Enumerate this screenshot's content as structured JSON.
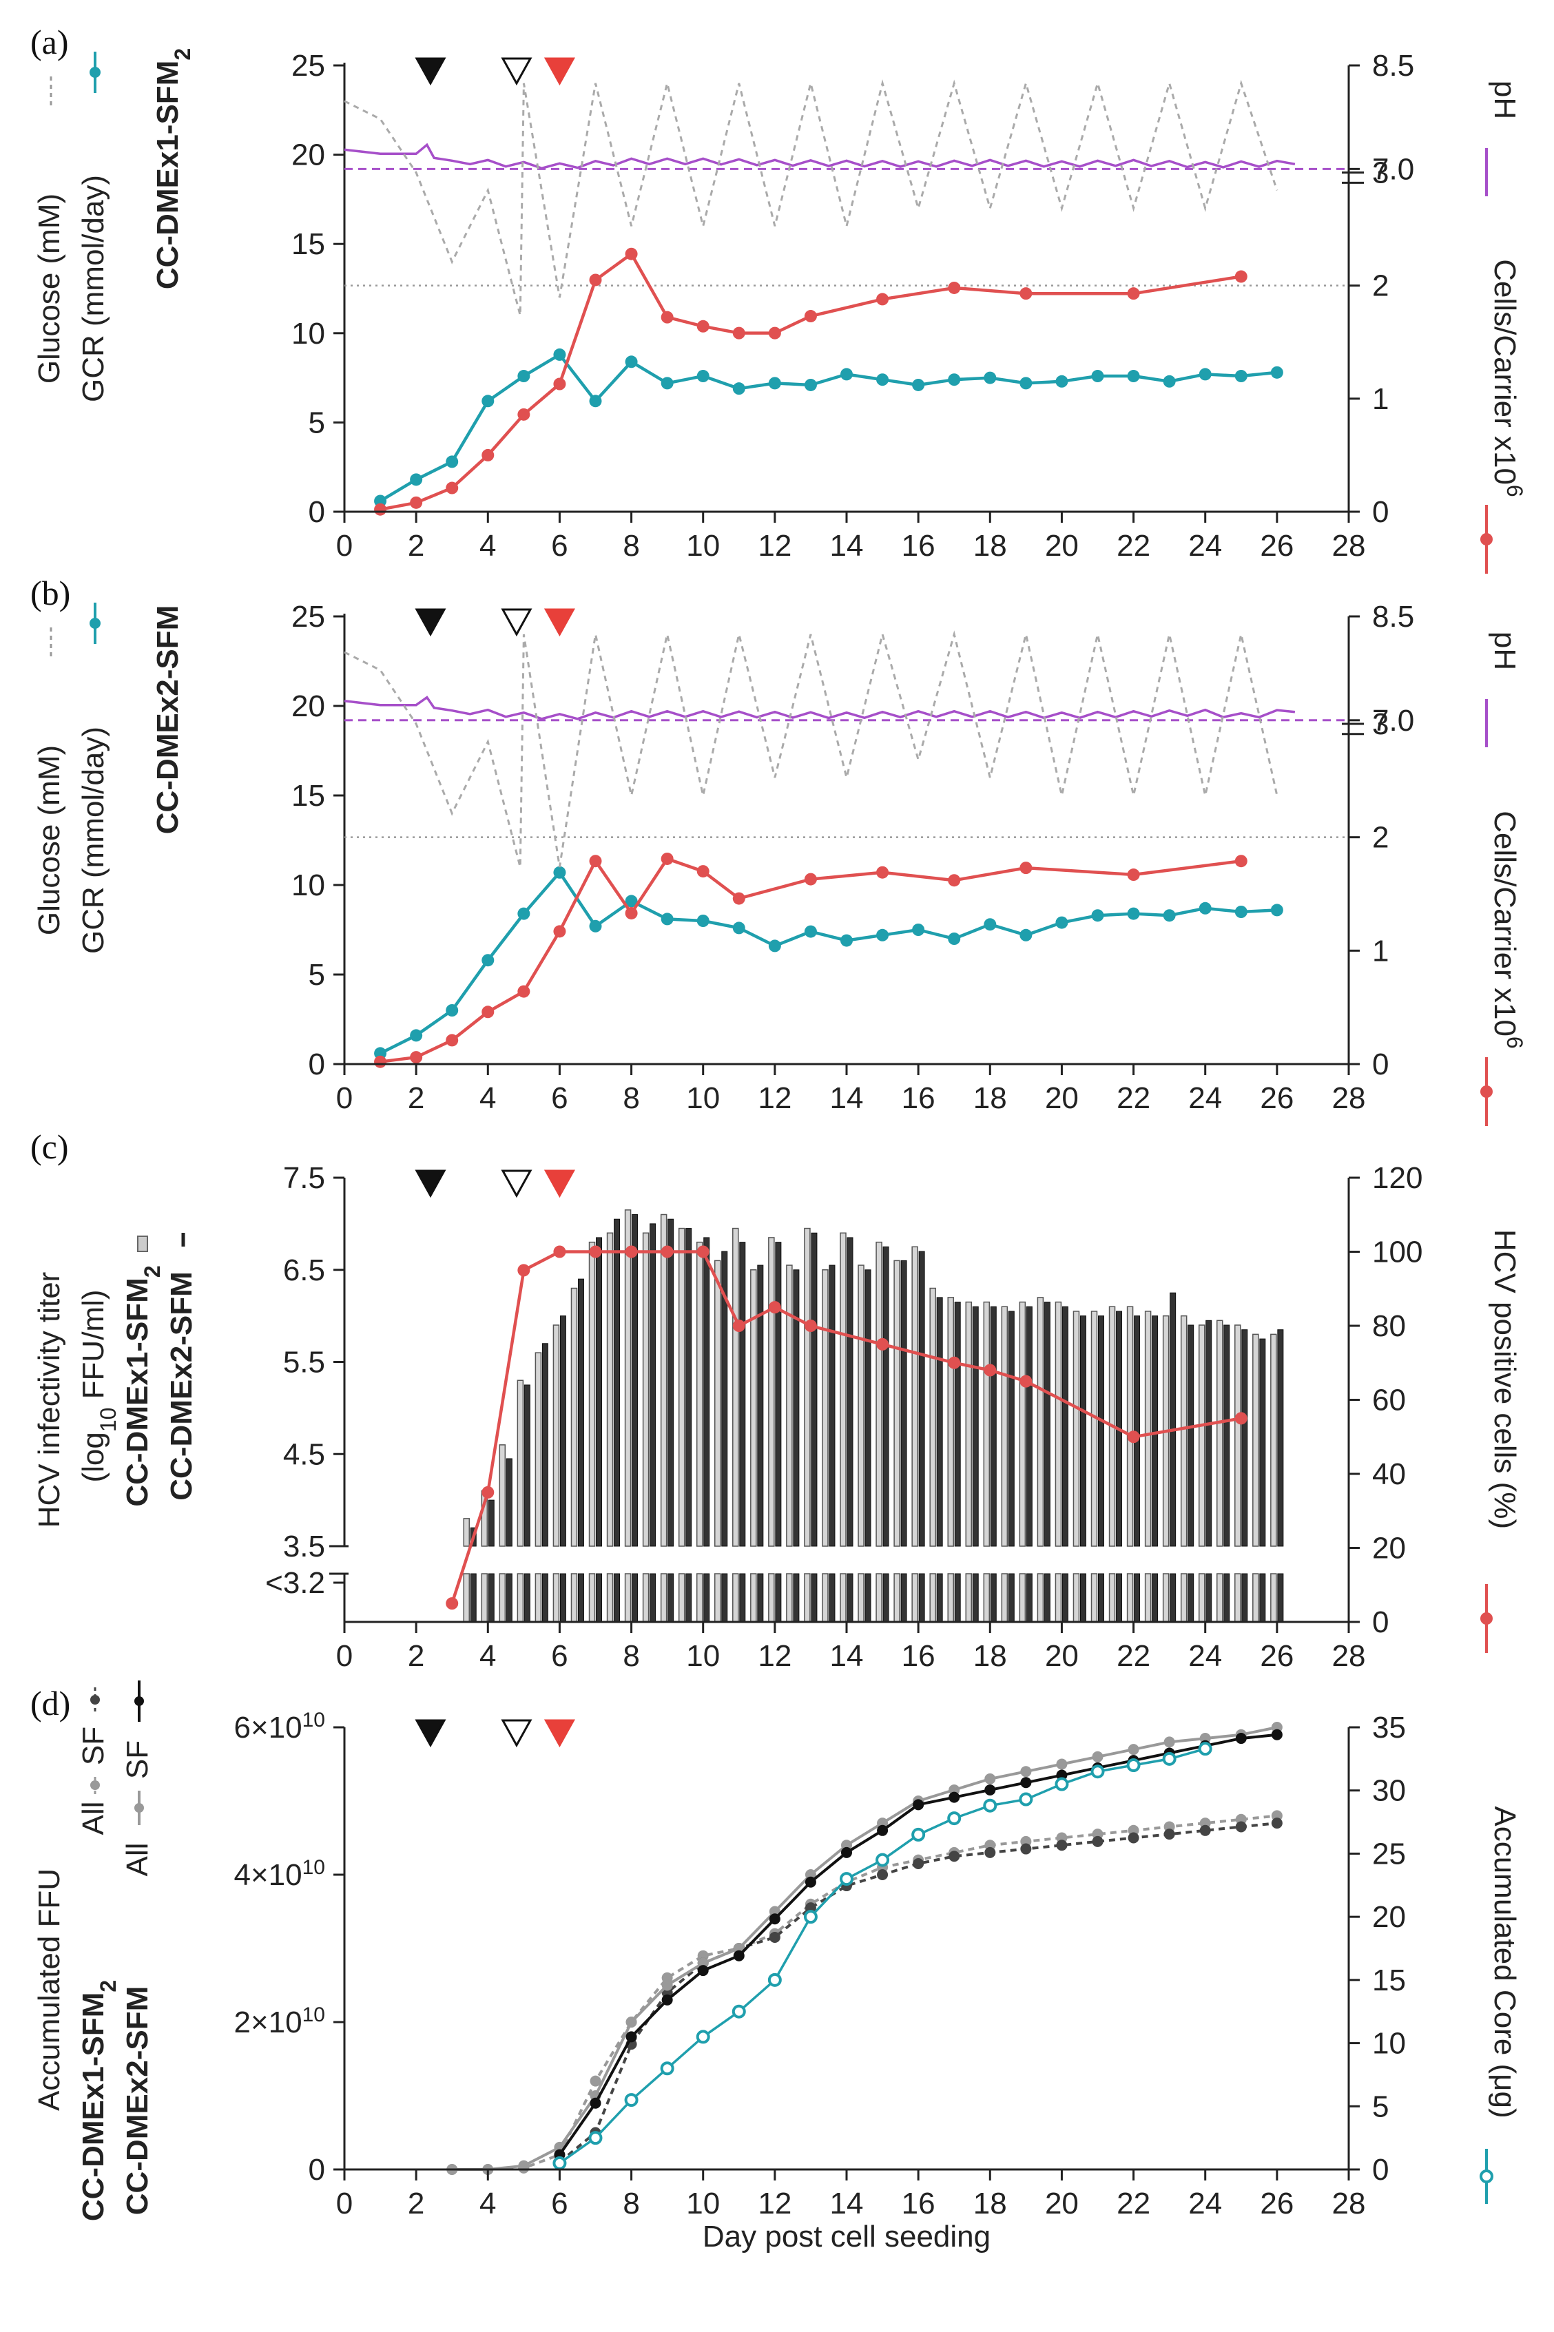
{
  "figure": {
    "xlabel": "Day post cell seeding",
    "x_ticks": [
      0,
      2,
      4,
      6,
      8,
      10,
      12,
      14,
      16,
      18,
      20,
      22,
      24,
      26,
      28
    ],
    "markers": [
      {
        "day": 2.4,
        "style": "filled-black"
      },
      {
        "day": 4.8,
        "style": "open-black"
      },
      {
        "day": 6.0,
        "style": "filled-red"
      }
    ],
    "colors": {
      "teal": "#1f9fad",
      "red": "#e05050",
      "purple": "#a64fc9",
      "grey": "#aaaaaa",
      "black": "#111111"
    }
  },
  "chart_data": [
    {
      "panel": "(a)",
      "type": "line",
      "culture": "CC-DMEx1-SFM",
      "culture_sub": "2",
      "ylabel_left_1": "Glucose (mM)",
      "ylabel_left_2": "GCR (mmol/day)",
      "ylabel_right_top": "pH",
      "ylabel_right_bottom": "Cells/Carrier x10",
      "ylabel_right_bottom_sup": "6",
      "y_left_ticks": [
        0,
        5,
        10,
        15,
        20,
        25
      ],
      "ylim_left": [
        0,
        25
      ],
      "y_right_bottom_ticks": [
        0,
        1,
        2,
        3
      ],
      "ylim_right_bottom": [
        0,
        3
      ],
      "y_right_top_ticks": [
        "7.0",
        "8.5"
      ],
      "ylim_right_top": [
        7.0,
        8.5
      ],
      "ph_reference": 7.0,
      "cells_reference": 2.0,
      "series": [
        {
          "name": "GCR (mmol/day)",
          "color": "#1f9fad",
          "x": [
            1,
            2,
            3,
            4,
            5,
            6,
            7,
            8,
            9,
            10,
            11,
            12,
            13,
            14,
            15,
            16,
            17,
            18,
            19,
            20,
            21,
            22,
            23,
            24,
            25,
            26
          ],
          "y": [
            0.6,
            1.8,
            2.8,
            6.2,
            7.6,
            8.8,
            6.2,
            8.4,
            7.2,
            7.6,
            6.9,
            7.2,
            7.1,
            7.7,
            7.4,
            7.1,
            7.4,
            7.5,
            7.2,
            7.3,
            7.6,
            7.6,
            7.3,
            7.7,
            7.6,
            7.8
          ]
        },
        {
          "name": "Cells/Carrier x10^6",
          "color": "#e05050",
          "x": [
            1,
            2,
            3,
            4,
            5,
            6,
            7,
            8,
            9,
            10,
            11,
            12,
            13,
            15,
            17,
            19,
            22,
            25
          ],
          "y": [
            0.02,
            0.08,
            0.21,
            0.5,
            0.86,
            1.13,
            2.05,
            2.28,
            1.72,
            1.64,
            1.58,
            1.58,
            1.73,
            1.88,
            1.98,
            1.93,
            1.93,
            2.08
          ]
        },
        {
          "name": "pH",
          "color": "#a64fc9",
          "x": [
            0,
            1,
            2,
            2.3,
            2.5,
            3,
            4,
            5,
            6,
            8,
            10,
            12,
            14,
            16,
            18,
            20,
            22,
            24,
            26.5
          ],
          "y": [
            7.28,
            7.22,
            7.22,
            7.35,
            7.16,
            7.12,
            7.08,
            7.05,
            7.03,
            7.1,
            7.1,
            7.08,
            7.07,
            7.06,
            7.08,
            7.06,
            7.08,
            7.05,
            7.07
          ]
        },
        {
          "name": "Glucose (mM)",
          "color": "#aaaaaa",
          "dashed": true,
          "x": [
            0,
            1,
            2,
            3,
            4,
            4.9,
            5,
            6,
            7,
            8,
            9,
            10,
            11,
            12,
            13,
            14,
            15,
            16,
            17,
            18,
            19,
            20,
            21,
            22,
            23,
            24,
            25,
            26
          ],
          "y": [
            23,
            22,
            19,
            14,
            18,
            11,
            24,
            12,
            24,
            16,
            24,
            16,
            24,
            16,
            24,
            16,
            24,
            17,
            24,
            17,
            24,
            17,
            24,
            17,
            24,
            17,
            24,
            18
          ]
        }
      ]
    },
    {
      "panel": "(b)",
      "type": "line",
      "culture": "CC-DMEx2-SFM",
      "culture_sub": "",
      "ylabel_left_1": "Glucose (mM)",
      "ylabel_left_2": "GCR (mmol/day)",
      "ylabel_right_top": "pH",
      "ylabel_right_bottom": "Cells/Carrier x10",
      "ylabel_right_bottom_sup": "6",
      "y_left_ticks": [
        0,
        5,
        10,
        15,
        20,
        25
      ],
      "ylim_left": [
        0,
        25
      ],
      "y_right_bottom_ticks": [
        0,
        1,
        2,
        3
      ],
      "ylim_right_bottom": [
        0,
        3
      ],
      "y_right_top_ticks": [
        "7.0",
        "8.5"
      ],
      "ylim_right_top": [
        7.0,
        8.5
      ],
      "ph_reference": 7.0,
      "cells_reference": 2.0,
      "series": [
        {
          "name": "GCR (mmol/day)",
          "color": "#1f9fad",
          "x": [
            1,
            2,
            3,
            4,
            5,
            6,
            7,
            8,
            9,
            10,
            11,
            12,
            13,
            14,
            15,
            16,
            17,
            18,
            19,
            20,
            21,
            22,
            23,
            24,
            25,
            26
          ],
          "y": [
            0.6,
            1.6,
            3.0,
            5.8,
            8.4,
            10.7,
            7.7,
            9.1,
            8.1,
            8.0,
            7.6,
            6.6,
            7.4,
            6.9,
            7.2,
            7.5,
            7.0,
            7.8,
            7.2,
            7.9,
            8.3,
            8.4,
            8.3,
            8.7,
            8.5,
            8.6
          ]
        },
        {
          "name": "Cells/Carrier x10^6",
          "color": "#e05050",
          "x": [
            1,
            2,
            3,
            4,
            5,
            6,
            7,
            8,
            9,
            10,
            11,
            13,
            15,
            17,
            19,
            22,
            25
          ],
          "y": [
            0.02,
            0.06,
            0.21,
            0.46,
            0.64,
            1.17,
            1.79,
            1.33,
            1.81,
            1.7,
            1.46,
            1.63,
            1.69,
            1.62,
            1.73,
            1.67,
            1.79
          ]
        },
        {
          "name": "pH",
          "color": "#a64fc9",
          "x": [
            0,
            1,
            2,
            2.3,
            2.5,
            3,
            4,
            5,
            6,
            8,
            10,
            12,
            14,
            16,
            18,
            20,
            22,
            24,
            25,
            26.5
          ],
          "y": [
            7.28,
            7.22,
            7.22,
            7.33,
            7.18,
            7.14,
            7.1,
            7.06,
            7.04,
            7.08,
            7.08,
            7.07,
            7.06,
            7.08,
            7.08,
            7.06,
            7.08,
            7.1,
            7.05,
            7.12
          ]
        },
        {
          "name": "Glucose (mM)",
          "color": "#aaaaaa",
          "dashed": true,
          "x": [
            0,
            1,
            2,
            3,
            4,
            4.9,
            5,
            6,
            7,
            8,
            9,
            10,
            11,
            12,
            13,
            14,
            15,
            16,
            17,
            18,
            19,
            20,
            21,
            22,
            23,
            24,
            25,
            26
          ],
          "y": [
            23,
            22,
            19,
            14,
            18,
            11,
            24,
            11,
            24,
            15,
            24,
            15,
            24,
            16,
            24,
            16,
            24,
            17,
            24,
            16,
            24,
            15,
            24,
            15,
            24,
            15,
            24,
            15
          ]
        }
      ]
    },
    {
      "panel": "(c)",
      "type": "bar",
      "culture_1": "CC-DMEx1-SFM",
      "culture_1_sub": "2",
      "culture_2": "CC-DMEx2-SFM",
      "ylabel_left_1": "HCV infectivity titer",
      "ylabel_left_2_pre": "(log",
      "ylabel_left_2_sub": "10",
      "ylabel_left_2_post": " FFU/ml)",
      "ylabel_right": "HCV positive cells (%)",
      "y_left_ticks": [
        "<3.2",
        "3.5",
        "4.5",
        "5.5",
        "6.5",
        "7.5"
      ],
      "ylim_left": [
        3.5,
        7.5
      ],
      "y_right_ticks": [
        0,
        20,
        40,
        60,
        80,
        100,
        120
      ],
      "ylim_right": [
        0,
        120
      ],
      "bars": {
        "x1": [
          3.5,
          4,
          4.5,
          5,
          5.5,
          6,
          6.5,
          7,
          7.5,
          8,
          8.5,
          9,
          9.5,
          10,
          10.5,
          11,
          11.5,
          12,
          12.5,
          13,
          13.5,
          14,
          14.5,
          15,
          15.5,
          16,
          16.5,
          17,
          17.5,
          18,
          18.5,
          19,
          19.5,
          20,
          20.5,
          21,
          21.5,
          22,
          22.5,
          23,
          23.5,
          24,
          24.5,
          25,
          25.5,
          26
        ],
        "titer_sfm2": [
          3.8,
          4.1,
          4.6,
          5.3,
          5.6,
          5.9,
          6.3,
          6.8,
          6.9,
          7.15,
          6.9,
          7.1,
          6.95,
          6.8,
          6.6,
          6.95,
          6.5,
          6.85,
          6.55,
          6.95,
          6.5,
          6.9,
          6.55,
          6.8,
          6.6,
          6.75,
          6.3,
          6.2,
          6.15,
          6.15,
          6.1,
          6.15,
          6.2,
          6.15,
          6.05,
          6.05,
          6.1,
          6.1,
          6.05,
          6.0,
          6.0,
          5.9,
          5.95,
          5.9,
          5.8,
          5.8
        ],
        "titer_sfm": [
          3.7,
          4.0,
          4.45,
          5.25,
          5.7,
          6.0,
          6.4,
          6.85,
          7.05,
          7.1,
          7.0,
          7.05,
          6.95,
          6.85,
          6.7,
          6.8,
          6.55,
          6.8,
          6.5,
          6.9,
          6.55,
          6.85,
          6.5,
          6.75,
          6.6,
          6.7,
          6.2,
          6.15,
          6.1,
          6.1,
          6.05,
          6.1,
          6.15,
          6.1,
          6.0,
          6.0,
          6.05,
          6.0,
          6.0,
          6.25,
          5.9,
          5.95,
          5.9,
          5.85,
          5.75,
          5.85
        ]
      },
      "series": [
        {
          "name": "HCV positive cells (%)",
          "color": "#e05050",
          "x": [
            3,
            4,
            5,
            6,
            7,
            8,
            9,
            10,
            11,
            12,
            13,
            15,
            17,
            18,
            19,
            22,
            25
          ],
          "y": [
            5,
            35,
            95,
            100,
            100,
            100,
            100,
            100,
            80,
            85,
            80,
            75,
            70,
            68,
            65,
            50,
            55
          ]
        }
      ]
    },
    {
      "panel": "(d)",
      "type": "line",
      "culture_1": "CC-DMEx1-SFM",
      "culture_1_sub": "2",
      "culture_2": "CC-DMEx2-SFM",
      "ylabel_left": "Accumulated FFU",
      "legend_all": "All",
      "legend_sf": "SF",
      "ylabel_right": "Accumulated Core (μg)",
      "y_left_ticks": [
        {
          "value": 0,
          "label": "0"
        },
        {
          "value": 20000000000,
          "label": "2×10",
          "exp": "10"
        },
        {
          "value": 40000000000,
          "label": "4×10",
          "exp": "10"
        },
        {
          "value": 60000000000,
          "label": "6×10",
          "exp": "10"
        }
      ],
      "ylim_left": [
        0,
        60000000000
      ],
      "y_right_ticks": [
        0,
        5,
        10,
        15,
        20,
        25,
        30,
        35
      ],
      "ylim_right": [
        0,
        35
      ],
      "series": [
        {
          "name": "CC-DMEx1-SFM2 All",
          "color": "#999999",
          "dashed": true,
          "x": [
            3,
            4,
            5,
            6,
            7,
            8,
            9,
            10,
            11,
            12,
            13,
            14,
            15,
            16,
            17,
            18,
            19,
            20,
            21,
            22,
            23,
            24,
            25,
            26
          ],
          "y": [
            0,
            0,
            0.02,
            0.2,
            1.2,
            2.0,
            2.6,
            2.9,
            3.0,
            3.2,
            3.6,
            3.9,
            4.1,
            4.2,
            4.3,
            4.4,
            4.45,
            4.5,
            4.55,
            4.6,
            4.65,
            4.7,
            4.75,
            4.8
          ]
        },
        {
          "name": "CC-DMEx1-SFM2 SF",
          "color": "#444444",
          "dashed": true,
          "x": [
            6,
            7,
            8,
            9,
            10,
            11,
            12,
            13,
            14,
            15,
            16,
            17,
            18,
            19,
            20,
            21,
            22,
            23,
            24,
            25,
            26
          ],
          "y": [
            0.1,
            0.5,
            1.7,
            2.4,
            2.8,
            3.0,
            3.15,
            3.55,
            3.85,
            4.0,
            4.15,
            4.25,
            4.3,
            4.35,
            4.4,
            4.45,
            4.5,
            4.55,
            4.6,
            4.65,
            4.7
          ]
        },
        {
          "name": "CC-DMEx2-SFM All",
          "color": "#999999",
          "x": [
            3,
            4,
            5,
            6,
            7,
            8,
            9,
            10,
            11,
            12,
            13,
            14,
            15,
            16,
            17,
            18,
            19,
            20,
            21,
            22,
            23,
            24,
            25,
            26
          ],
          "y": [
            0,
            0,
            0.05,
            0.3,
            1.0,
            2.0,
            2.5,
            2.8,
            3.0,
            3.5,
            4.0,
            4.4,
            4.7,
            5.0,
            5.15,
            5.3,
            5.4,
            5.5,
            5.6,
            5.7,
            5.8,
            5.85,
            5.9,
            6.0
          ]
        },
        {
          "name": "CC-DMEx2-SFM SF",
          "color": "#111111",
          "x": [
            6,
            7,
            8,
            9,
            10,
            11,
            12,
            13,
            14,
            15,
            16,
            17,
            18,
            19,
            20,
            21,
            22,
            23,
            24,
            25,
            26
          ],
          "y": [
            0.2,
            0.9,
            1.8,
            2.3,
            2.7,
            2.9,
            3.4,
            3.9,
            4.3,
            4.6,
            4.95,
            5.05,
            5.15,
            5.25,
            5.35,
            5.45,
            5.55,
            5.65,
            5.75,
            5.85,
            5.9
          ]
        },
        {
          "name": "Accumulated Core (μg)",
          "color": "#1f9fad",
          "open_markers": true,
          "x": [
            6,
            7,
            8,
            9,
            10,
            11,
            12,
            13,
            14,
            15,
            16,
            17,
            18,
            19,
            20,
            21,
            22,
            23,
            24
          ],
          "y": [
            0.5,
            2.5,
            5.5,
            8.0,
            10.5,
            12.5,
            15.0,
            20.0,
            23.0,
            24.5,
            26.5,
            27.8,
            28.8,
            29.3,
            30.5,
            31.5,
            32.0,
            32.5,
            33.3
          ]
        }
      ]
    }
  ]
}
